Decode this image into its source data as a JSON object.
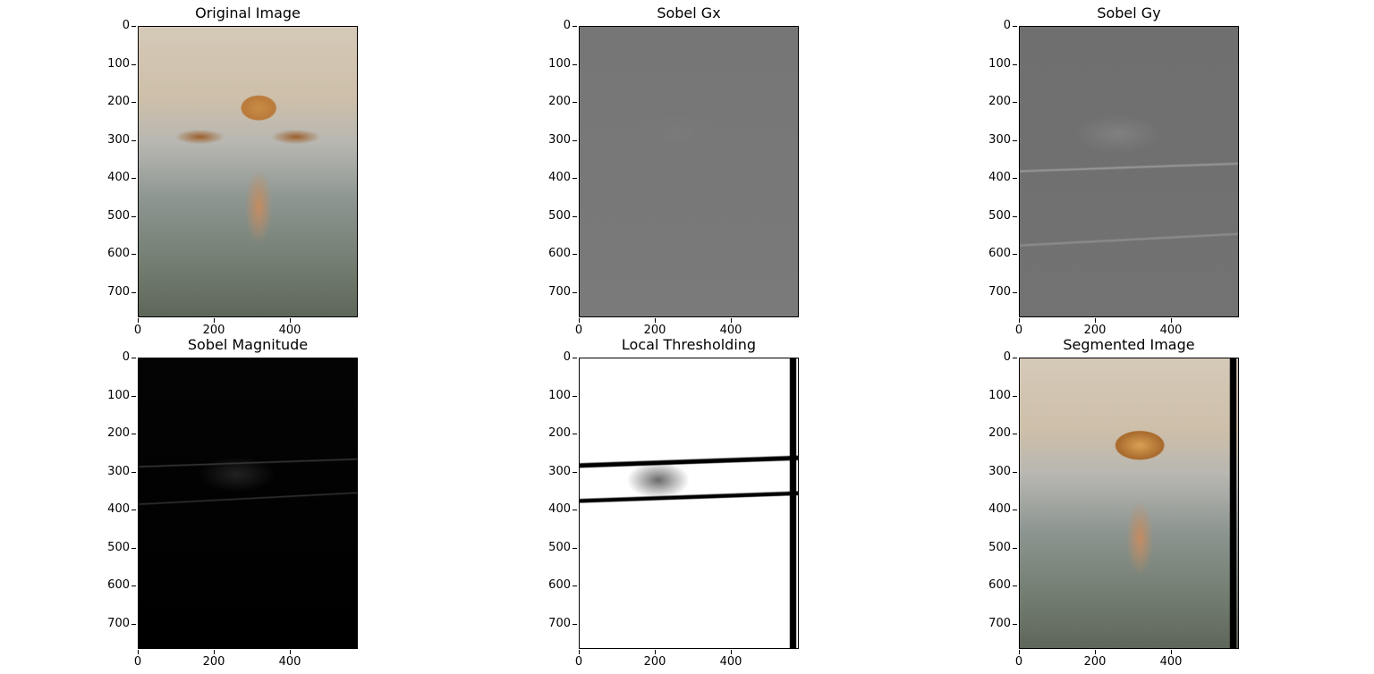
{
  "figure": {
    "panels": [
      {
        "id": "original",
        "title": "Original Image",
        "texture": "tex-orig"
      },
      {
        "id": "sobel-gx",
        "title": "Sobel Gx",
        "texture": "tex-gx"
      },
      {
        "id": "sobel-gy",
        "title": "Sobel Gy",
        "texture": "tex-gy"
      },
      {
        "id": "sobel-magnitude",
        "title": "Sobel Magnitude",
        "texture": "tex-mag"
      },
      {
        "id": "local-thresholding",
        "title": "Local Thresholding",
        "texture": "tex-thr"
      },
      {
        "id": "segmented",
        "title": "Segmented Image",
        "texture": "tex-seg"
      }
    ],
    "y_ticks": [
      "0",
      "100",
      "200",
      "300",
      "400",
      "500",
      "600",
      "700"
    ],
    "x_ticks": [
      "0",
      "200",
      "400"
    ]
  }
}
